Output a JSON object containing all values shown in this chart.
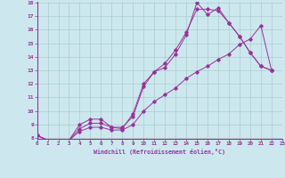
{
  "xlabel": "Windchill (Refroidissement éolien,°C)",
  "bg_color": "#cce8ee",
  "line_color": "#993399",
  "grid_color": "#aacccc",
  "xmin": 0,
  "xmax": 23,
  "ymin": 8,
  "ymax": 18,
  "yticks": [
    8,
    9,
    10,
    11,
    12,
    13,
    14,
    15,
    16,
    17,
    18
  ],
  "xticks": [
    0,
    1,
    2,
    3,
    4,
    5,
    6,
    7,
    8,
    9,
    10,
    11,
    12,
    13,
    14,
    15,
    16,
    17,
    18,
    19,
    20,
    21,
    22,
    23
  ],
  "line1_x": [
    0,
    1,
    2,
    3,
    4,
    5,
    6,
    7,
    8,
    9,
    10,
    11,
    12,
    13,
    14,
    15,
    16,
    17,
    18,
    19,
    20,
    21,
    22
  ],
  "line1_y": [
    8.2,
    7.85,
    7.85,
    7.85,
    9.0,
    9.4,
    9.4,
    8.8,
    8.7,
    9.8,
    12.0,
    12.9,
    13.5,
    14.5,
    15.8,
    17.5,
    17.5,
    17.4,
    16.5,
    15.5,
    14.3,
    13.3,
    13.0
  ],
  "line2_x": [
    0,
    1,
    2,
    3,
    4,
    5,
    6,
    7,
    8,
    9,
    10,
    11,
    12,
    13,
    14,
    15,
    16,
    17,
    18,
    19,
    20,
    21,
    22
  ],
  "line2_y": [
    8.2,
    7.85,
    7.85,
    7.85,
    8.7,
    9.1,
    9.1,
    8.8,
    8.8,
    9.6,
    11.8,
    12.9,
    13.2,
    14.2,
    15.6,
    18.0,
    17.1,
    17.6,
    16.5,
    15.5,
    14.3,
    13.3,
    13.0
  ],
  "line3_x": [
    0,
    1,
    2,
    3,
    4,
    5,
    6,
    7,
    8,
    9,
    10,
    11,
    12,
    13,
    14,
    15,
    16,
    17,
    18,
    19,
    20,
    21,
    22
  ],
  "line3_y": [
    8.2,
    7.85,
    7.85,
    7.85,
    8.5,
    8.8,
    8.8,
    8.6,
    8.6,
    9.0,
    10.0,
    10.7,
    11.2,
    11.7,
    12.4,
    12.9,
    13.3,
    13.8,
    14.2,
    14.9,
    15.3,
    16.3,
    13.0
  ]
}
